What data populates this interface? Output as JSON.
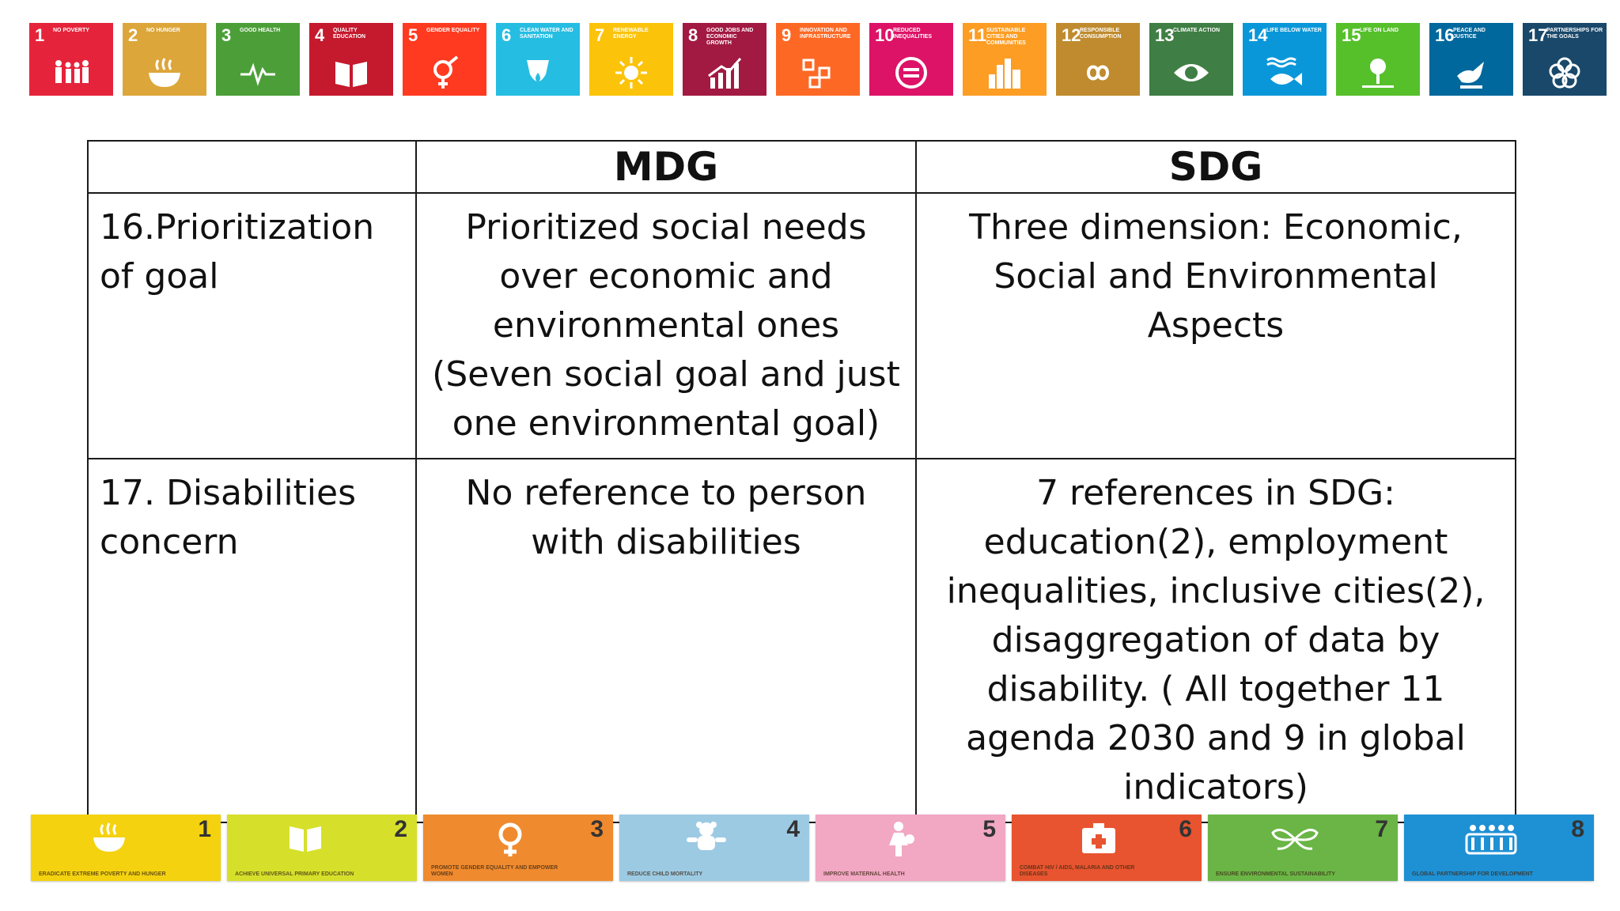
{
  "sdg_goals": [
    {
      "num": "1",
      "title": "No poverty",
      "color": "#E5243B",
      "icon": "people-icon"
    },
    {
      "num": "2",
      "title": "No hunger",
      "color": "#DDA63A",
      "icon": "bowl-icon"
    },
    {
      "num": "3",
      "title": "Good health",
      "color": "#4C9F38",
      "icon": "heartbeat-icon"
    },
    {
      "num": "4",
      "title": "Quality education",
      "color": "#C5192D",
      "icon": "book-icon"
    },
    {
      "num": "5",
      "title": "Gender equality",
      "color": "#FF3A21",
      "icon": "gender-icon"
    },
    {
      "num": "6",
      "title": "Clean water and sanitation",
      "color": "#26BDE2",
      "icon": "water-drop-icon"
    },
    {
      "num": "7",
      "title": "Renewable energy",
      "color": "#FCC30B",
      "icon": "sun-icon"
    },
    {
      "num": "8",
      "title": "Good jobs and economic growth",
      "color": "#A21942",
      "icon": "growth-chart-icon"
    },
    {
      "num": "9",
      "title": "Innovation and infrastructure",
      "color": "#FD6925",
      "icon": "cubes-icon"
    },
    {
      "num": "10",
      "title": "Reduced inequalities",
      "color": "#DD1367",
      "icon": "equals-icon"
    },
    {
      "num": "11",
      "title": "Sustainable cities and communities",
      "color": "#FD9D24",
      "icon": "city-icon"
    },
    {
      "num": "12",
      "title": "Responsible consumption",
      "color": "#BF8B2E",
      "icon": "infinity-icon"
    },
    {
      "num": "13",
      "title": "Climate action",
      "color": "#3F7E44",
      "icon": "eye-globe-icon"
    },
    {
      "num": "14",
      "title": "Life below water",
      "color": "#0A97D9",
      "icon": "fish-icon"
    },
    {
      "num": "15",
      "title": "Life on land",
      "color": "#56C02B",
      "icon": "tree-icon"
    },
    {
      "num": "16",
      "title": "Peace and justice",
      "color": "#00689D",
      "icon": "dove-icon"
    },
    {
      "num": "17",
      "title": "Partnerships for the goals",
      "color": "#19486A",
      "icon": "flower-icon"
    }
  ],
  "table": {
    "headers": [
      "",
      "MDG",
      "SDG"
    ],
    "rows": [
      {
        "label": "16.Prioritization of goal",
        "mdg": "Prioritized social needs over economic and environmental ones (Seven social goal and just one environmental goal)",
        "sdg": "Three dimension: Economic, Social and Environmental Aspects"
      },
      {
        "label": "17. Disabilities concern",
        "mdg": "No reference to person with disabilities",
        "sdg": "7 references in SDG: education(2), employment inequalities, inclusive cities(2), disaggregation of data by disability. ( All together 11 agenda 2030 and 9 in global indicators)"
      }
    ]
  },
  "mdg_goals": [
    {
      "num": "1",
      "caption": "Eradicate extreme poverty and hunger",
      "color": "#F4D20F",
      "icon": "bowl-icon"
    },
    {
      "num": "2",
      "caption": "Achieve universal primary education",
      "color": "#D6E02A",
      "icon": "book-icon"
    },
    {
      "num": "3",
      "caption": "Promote gender equality and empower women",
      "color": "#F08A2E",
      "icon": "female-icon"
    },
    {
      "num": "4",
      "caption": "Reduce child mortality",
      "color": "#9CCAE3",
      "icon": "teddy-icon"
    },
    {
      "num": "5",
      "caption": "Improve maternal health",
      "color": "#F2A7C3",
      "icon": "mother-icon"
    },
    {
      "num": "6",
      "caption": "Combat HIV / AIDS, malaria and other diseases",
      "color": "#E8542F",
      "icon": "medkit-icon"
    },
    {
      "num": "7",
      "caption": "Ensure environmental sustainability",
      "color": "#6AB545",
      "icon": "leaf-icon"
    },
    {
      "num": "8",
      "caption": "Global partnership for development",
      "color": "#1E90D4",
      "icon": "people-row-icon"
    }
  ]
}
